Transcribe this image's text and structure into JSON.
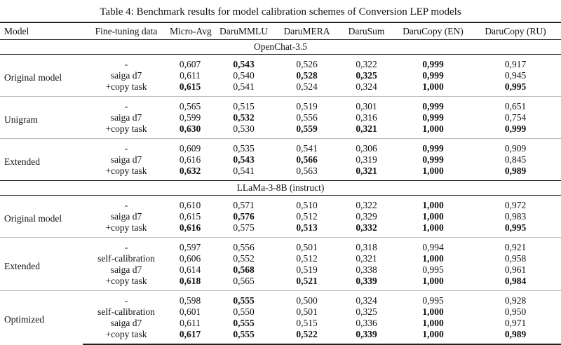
{
  "caption": "Table 4: Benchmark results for model calibration schemes of Conversion LEP models",
  "headers": [
    "Model",
    "Fine-tuning data",
    "Micro-Avg",
    "DaruMMLU",
    "DaruMERA",
    "DaruSum",
    "DaruCopy (EN)",
    "DaruCopy (RU)"
  ],
  "sections": [
    {
      "title": "OpenChat-3.5",
      "groups": [
        {
          "model": "Original model",
          "rows": [
            {
              "ft": "-",
              "values": [
                "0,607",
                "0,543",
                "0,526",
                "0,322",
                "0,999",
                "0,917"
              ],
              "bold": [
                false,
                true,
                false,
                false,
                true,
                false
              ]
            },
            {
              "ft": "saiga d7",
              "values": [
                "0,611",
                "0,540",
                "0,528",
                "0,325",
                "0,999",
                "0,945"
              ],
              "bold": [
                false,
                false,
                true,
                true,
                true,
                false
              ]
            },
            {
              "ft": "+copy task",
              "values": [
                "0,615",
                "0,541",
                "0,524",
                "0,324",
                "1,000",
                "0,995"
              ],
              "bold": [
                true,
                false,
                false,
                false,
                true,
                true
              ]
            }
          ]
        },
        {
          "model": "Unigram",
          "rows": [
            {
              "ft": "-",
              "values": [
                "0,565",
                "0,515",
                "0,519",
                "0,301",
                "0,999",
                "0,651"
              ],
              "bold": [
                false,
                false,
                false,
                false,
                true,
                false
              ]
            },
            {
              "ft": "saiga d7",
              "values": [
                "0,599",
                "0,532",
                "0,556",
                "0,316",
                "0,999",
                "0,754"
              ],
              "bold": [
                false,
                true,
                false,
                false,
                true,
                false
              ]
            },
            {
              "ft": "+copy task",
              "values": [
                "0,630",
                "0,530",
                "0,559",
                "0,321",
                "1,000",
                "0,999"
              ],
              "bold": [
                true,
                false,
                true,
                true,
                true,
                true
              ]
            }
          ]
        },
        {
          "model": "Extended",
          "rows": [
            {
              "ft": "-",
              "values": [
                "0,609",
                "0,535",
                "0,541",
                "0,306",
                "0,999",
                "0,909"
              ],
              "bold": [
                false,
                false,
                false,
                false,
                true,
                false
              ]
            },
            {
              "ft": "saiga d7",
              "values": [
                "0,616",
                "0,543",
                "0,566",
                "0,319",
                "0,999",
                "0,845"
              ],
              "bold": [
                false,
                true,
                true,
                false,
                true,
                false
              ]
            },
            {
              "ft": "+copy task",
              "values": [
                "0,632",
                "0,541",
                "0,563",
                "0,321",
                "1,000",
                "0,989"
              ],
              "bold": [
                true,
                false,
                false,
                true,
                true,
                true
              ]
            }
          ]
        }
      ]
    },
    {
      "title": "LLaMa-3-8B (instruct)",
      "groups": [
        {
          "model": "Original model",
          "rows": [
            {
              "ft": "-",
              "values": [
                "0,610",
                "0,571",
                "0,510",
                "0,322",
                "1,000",
                "0,972"
              ],
              "bold": [
                false,
                false,
                false,
                false,
                true,
                false
              ]
            },
            {
              "ft": "saiga d7",
              "values": [
                "0,615",
                "0,576",
                "0,512",
                "0,329",
                "1,000",
                "0,983"
              ],
              "bold": [
                false,
                true,
                false,
                false,
                true,
                false
              ]
            },
            {
              "ft": "+copy task",
              "values": [
                "0,616",
                "0,575",
                "0,513",
                "0,332",
                "1,000",
                "0,995"
              ],
              "bold": [
                true,
                false,
                true,
                true,
                true,
                true
              ]
            }
          ]
        },
        {
          "model": "Extended",
          "rows": [
            {
              "ft": "-",
              "values": [
                "0,597",
                "0,556",
                "0,501",
                "0,318",
                "0,994",
                "0,921"
              ],
              "bold": [
                false,
                false,
                false,
                false,
                false,
                false
              ]
            },
            {
              "ft": "self-calibration",
              "values": [
                "0,606",
                "0,552",
                "0,512",
                "0,321",
                "1,000",
                "0,958"
              ],
              "bold": [
                false,
                false,
                false,
                false,
                true,
                false
              ]
            },
            {
              "ft": "saiga d7",
              "values": [
                "0,614",
                "0,568",
                "0,519",
                "0,338",
                "0,995",
                "0,961"
              ],
              "bold": [
                false,
                true,
                false,
                false,
                false,
                false
              ]
            },
            {
              "ft": "+copy task",
              "values": [
                "0,618",
                "0,565",
                "0,521",
                "0,339",
                "1,000",
                "0,984"
              ],
              "bold": [
                true,
                false,
                true,
                true,
                true,
                true
              ]
            }
          ]
        },
        {
          "model": "Optimized",
          "rows": [
            {
              "ft": "-",
              "values": [
                "0,598",
                "0,555",
                "0,500",
                "0,324",
                "0,995",
                "0,928"
              ],
              "bold": [
                false,
                true,
                false,
                false,
                false,
                false
              ]
            },
            {
              "ft": "self-calibration",
              "values": [
                "0,601",
                "0,550",
                "0,501",
                "0,325",
                "1,000",
                "0,950"
              ],
              "bold": [
                false,
                false,
                false,
                false,
                true,
                false
              ]
            },
            {
              "ft": "saiga d7",
              "values": [
                "0,611",
                "0,555",
                "0,515",
                "0,336",
                "1,000",
                "0,971"
              ],
              "bold": [
                false,
                true,
                false,
                false,
                true,
                false
              ]
            },
            {
              "ft": "+copy task",
              "values": [
                "0,617",
                "0,555",
                "0,522",
                "0,339",
                "1,000",
                "0,989"
              ],
              "bold": [
                true,
                true,
                true,
                true,
                true,
                true
              ]
            }
          ]
        }
      ]
    }
  ]
}
